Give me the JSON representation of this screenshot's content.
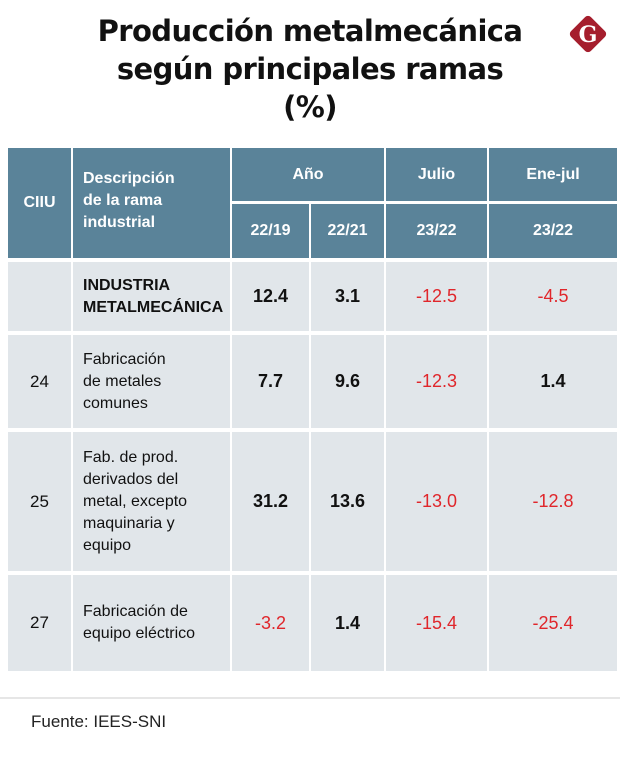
{
  "title": {
    "line1": "Producción metalmecánica",
    "line2": "según principales ramas",
    "line3": "(%)"
  },
  "logo": {
    "letter": "G",
    "color": "#a51e2d"
  },
  "colors": {
    "header_bg": "#5a8399",
    "row_bg": "#e1e6ea",
    "negative": "#e0262b"
  },
  "chart_data": {
    "type": "table",
    "title": "Producción metalmecánica según principales ramas (%)",
    "headers": {
      "ciiu": "CIIU",
      "description": [
        "Descripción",
        "de la rama",
        "industrial"
      ],
      "groups": [
        {
          "label": "Año",
          "subcolumns": [
            "22/19",
            "22/21"
          ]
        },
        {
          "label": "Julio",
          "subcolumns": [
            "23/22"
          ]
        },
        {
          "label": "Ene-jul",
          "subcolumns": [
            "23/22"
          ]
        }
      ]
    },
    "rows": [
      {
        "ciiu": "",
        "description": [
          "INDUSTRIA",
          "METALMECÁNICA"
        ],
        "bold": true,
        "values": [
          "12.4",
          "3.1",
          "-12.5",
          "-4.5"
        ]
      },
      {
        "ciiu": "24",
        "description": [
          "Fabricación",
          "de metales",
          "comunes"
        ],
        "bold": false,
        "values": [
          "7.7",
          "9.6",
          "-12.3",
          "1.4"
        ]
      },
      {
        "ciiu": "25",
        "description": [
          "Fab. de prod.",
          "derivados del",
          "metal, excepto",
          "maquinaria y",
          "equipo"
        ],
        "bold": false,
        "values": [
          "31.2",
          "13.6",
          "-13.0",
          "-12.8"
        ]
      },
      {
        "ciiu": "27",
        "description": [
          "Fabricación de",
          "equipo eléctrico"
        ],
        "bold": false,
        "values": [
          "-3.2",
          "1.4",
          "-15.4",
          "-25.4"
        ]
      }
    ]
  },
  "footer": {
    "source": "Fuente: IEES-SNI"
  }
}
